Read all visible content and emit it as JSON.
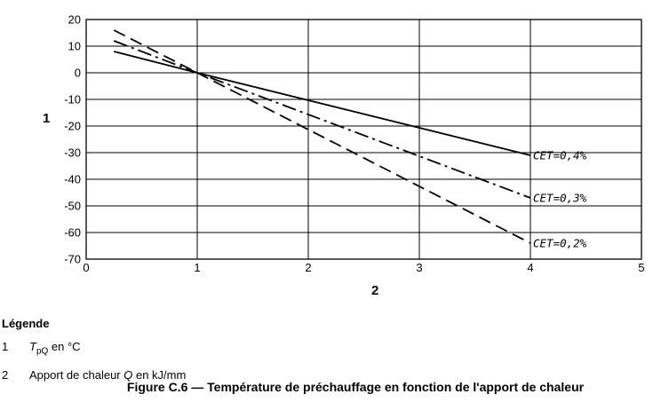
{
  "chart_data": {
    "type": "line",
    "title": "",
    "xlabel": "2",
    "ylabel": "1",
    "xlim": [
      0,
      5
    ],
    "ylim": [
      -70,
      20
    ],
    "x_ticks": [
      "0",
      "1",
      "2",
      "3",
      "4",
      "5"
    ],
    "y_ticks": [
      "20",
      "10",
      "0",
      "-10",
      "-20",
      "-30",
      "-40",
      "-50",
      "-60",
      "-70"
    ],
    "grid": true,
    "series": [
      {
        "name": "CET=0,4%",
        "style": "solid",
        "x": [
          0.25,
          1,
          4
        ],
        "y": [
          8,
          0,
          -31
        ]
      },
      {
        "name": "CET=0,3%",
        "style": "dash-dot",
        "x": [
          0.25,
          1,
          4
        ],
        "y": [
          12,
          0,
          -47
        ]
      },
      {
        "name": "CET=0,2%",
        "style": "dashed",
        "x": [
          0.25,
          1,
          4
        ],
        "y": [
          16,
          0,
          -64
        ]
      }
    ]
  },
  "legend": {
    "title": "Légende",
    "items": [
      {
        "num": "1",
        "symbol": "T",
        "subscript": "pQ",
        "text": " en °C"
      },
      {
        "num": "2",
        "text_before": "Apport de chaleur ",
        "symbol": "Q",
        "text_after": " en kJ/mm"
      }
    ]
  },
  "caption": "Figure C.6 — Température de préchauffage en fonction de l'apport de chaleur"
}
